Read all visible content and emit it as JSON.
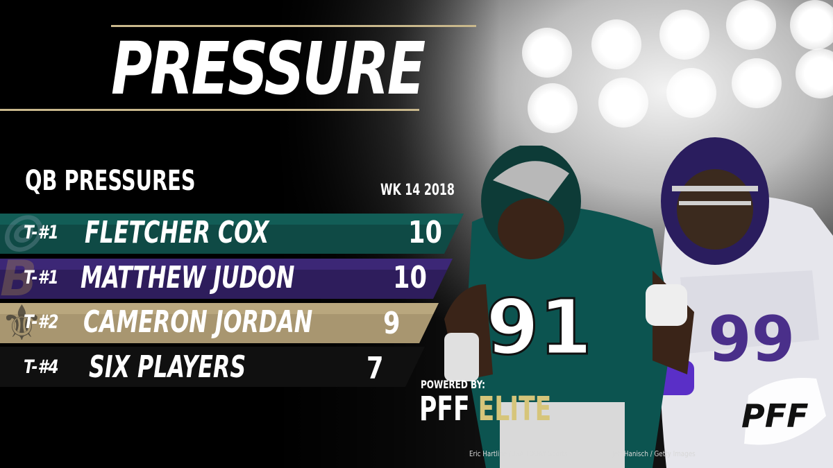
{
  "graphic": {
    "title": "PRESSURE",
    "subtitle": "QB PRESSURES",
    "week": "WK 14 2018",
    "rows": [
      {
        "rank": "T-#1",
        "name": "FLETCHER COX",
        "value": "10",
        "color": "#0f4a45"
      },
      {
        "rank": "T-#1",
        "name": "MATTHEW JUDON",
        "value": "10",
        "color": "#2e1d5c"
      },
      {
        "rank": "T-#2",
        "name": "CAMERON JORDAN",
        "value": "9",
        "color": "#a89670"
      },
      {
        "rank": "T-#4",
        "name": "SIX PLAYERS",
        "value": "7",
        "color": "#101010"
      }
    ],
    "powered_by": "POWERED BY:",
    "brand": "PFF",
    "brand_tier": "ELITE",
    "logo_text": "PFF",
    "player_left_number": "91",
    "player_right_number": "99",
    "credits": {
      "left": "Eric Hartline /USA TODAY Sports",
      "right": "Jeff Hanisch / Getty Images"
    },
    "accent_color": "#c9b88c"
  }
}
